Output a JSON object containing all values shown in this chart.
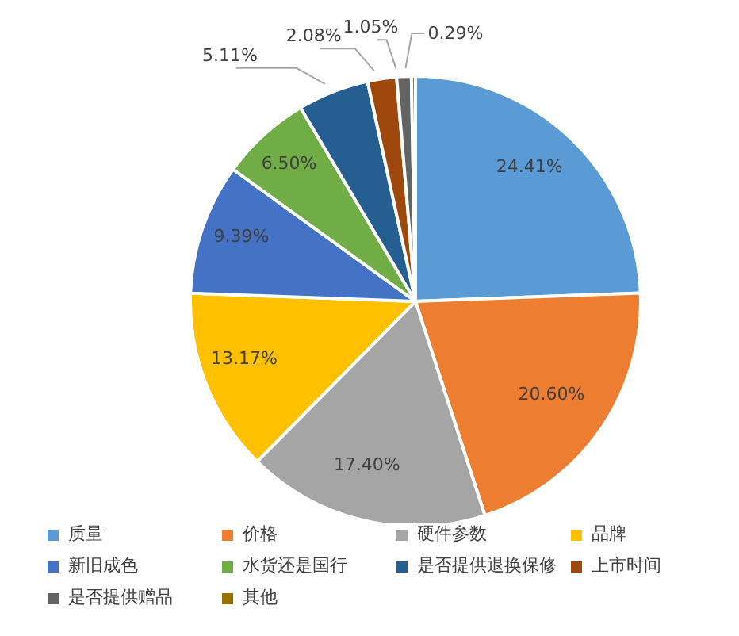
{
  "chart_data": {
    "type": "pie",
    "categories": [
      "质量",
      "价格",
      "硬件参数",
      "品牌",
      "新旧成色",
      "水货还是国行",
      "是否提供退换保修",
      "上市时间",
      "是否提供赠品",
      "其他"
    ],
    "values": [
      24.41,
      20.6,
      17.4,
      13.17,
      9.39,
      6.5,
      5.11,
      2.08,
      1.05,
      0.29
    ],
    "colors": [
      "#5b9bd5",
      "#ed7d31",
      "#a5a5a5",
      "#ffc000",
      "#4472c4",
      "#70ad47",
      "#255e91",
      "#9e480e",
      "#636363",
      "#997300"
    ],
    "value_labels": [
      "24.41%",
      "20.60%",
      "17.40%",
      "13.17%",
      "9.39%",
      "6.50%",
      "5.11%",
      "2.08%",
      "1.05%",
      "0.29%"
    ],
    "legend": "bottom"
  }
}
